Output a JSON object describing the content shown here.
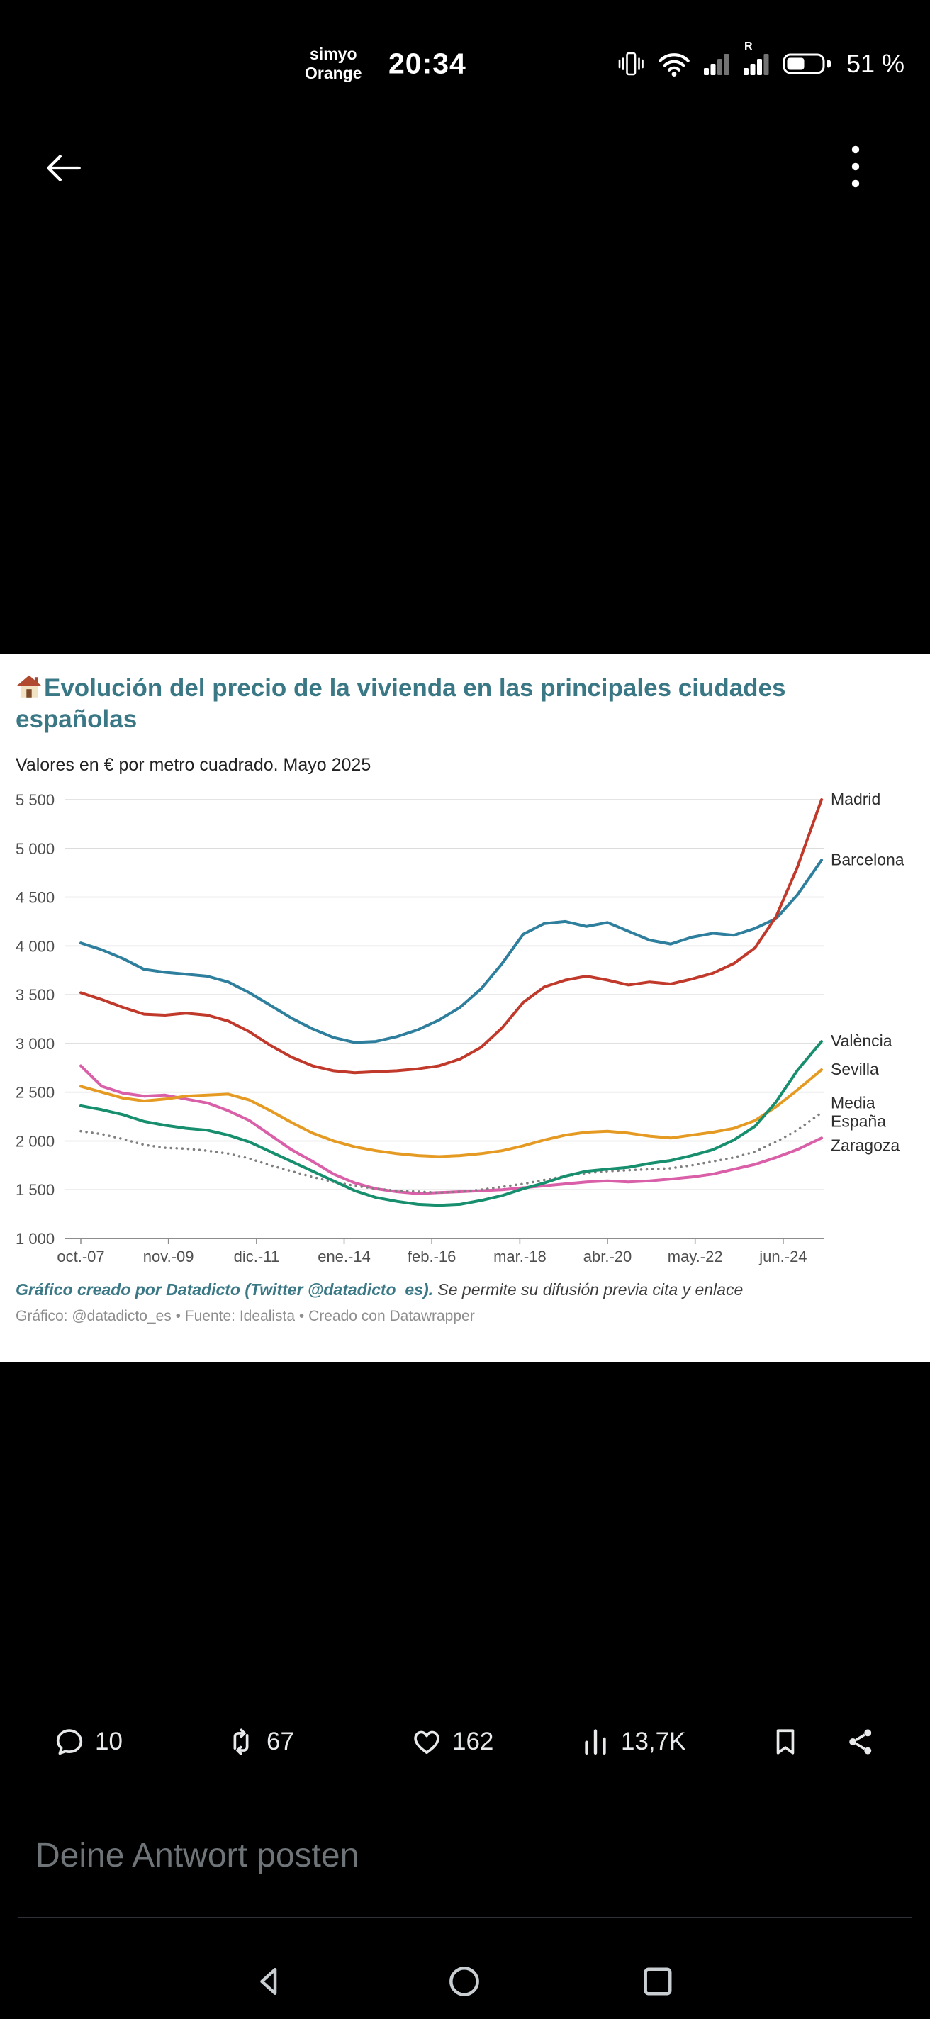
{
  "status_bar": {
    "carrier_line1": "simyo",
    "carrier_line2": "Orange",
    "time": "20:34",
    "battery_percent_label": "51 %",
    "battery_level": 0.51,
    "roaming_badge": "R",
    "icons": [
      "vibrate-icon",
      "wifi-icon",
      "signal-strength-icon",
      "signal-strength-roaming-icon",
      "battery-icon"
    ]
  },
  "viewer_header": {
    "icons": [
      "back-arrow-icon",
      "more-options-kebab-icon"
    ]
  },
  "chart_card": {
    "title_icon": "house-emoji-icon",
    "title": "Evolución del precio de la vivienda en las principales ciudades españolas",
    "subtitle": "Valores en € por metro cuadrado. Mayo 2025",
    "title_color": "#3a7886",
    "credit_bold": "Gráfico creado por Datadicto (Twitter @datadicto_es).",
    "credit_rest": " Se permite su difusión previa cita y enlace",
    "attribution": "Gráfico: @datadicto_es • Fuente: Idealista • Creado con Datawrapper"
  },
  "chart_data": {
    "type": "line",
    "title": "Evolución del precio de la vivienda en las principales ciudades españolas",
    "subtitle": "Valores en € por metro cuadrado. Mayo 2025",
    "unit": "€/m²",
    "grid": true,
    "legend_position": "right-edge-labels",
    "ylim": [
      1000,
      5500
    ],
    "ytick_values": [
      5500,
      5000,
      4500,
      4000,
      3500,
      3000,
      2500,
      2000,
      1500,
      1000
    ],
    "ytick_labels": [
      "5 500",
      "5 000",
      "4 500",
      "4 000",
      "3 500",
      "3 000",
      "2 500",
      "2 000",
      "1 500",
      "1 000"
    ],
    "xticks": [
      "oct.-07",
      "nov.-09",
      "dic.-11",
      "ene.-14",
      "feb.-16",
      "mar.-18",
      "abr.-20",
      "may.-22",
      "jun.-24"
    ],
    "xtick_years": [
      2007.79,
      2009.87,
      2011.96,
      2014.04,
      2016.12,
      2018.21,
      2020.29,
      2022.37,
      2024.46
    ],
    "x_range_years": [
      2007.79,
      2025.37
    ],
    "x_years": [
      2007.79,
      2008.29,
      2008.79,
      2009.29,
      2009.79,
      2010.29,
      2010.79,
      2011.29,
      2011.79,
      2012.29,
      2012.79,
      2013.29,
      2013.79,
      2014.29,
      2014.79,
      2015.29,
      2015.79,
      2016.29,
      2016.79,
      2017.29,
      2017.79,
      2018.29,
      2018.79,
      2019.29,
      2019.79,
      2020.29,
      2020.79,
      2021.29,
      2021.79,
      2022.29,
      2022.79,
      2023.29,
      2023.79,
      2024.29,
      2024.79,
      2025.37
    ],
    "series": [
      {
        "name": "Madrid",
        "label": [
          "Madrid"
        ],
        "color": "#c0392b",
        "dashed": false,
        "values": [
          3520,
          3450,
          3370,
          3300,
          3290,
          3310,
          3290,
          3230,
          3120,
          2980,
          2860,
          2770,
          2720,
          2700,
          2710,
          2720,
          2740,
          2770,
          2840,
          2960,
          3160,
          3420,
          3580,
          3650,
          3690,
          3650,
          3600,
          3630,
          3610,
          3660,
          3720,
          3820,
          3980,
          4300,
          4800,
          5500
        ]
      },
      {
        "name": "Barcelona",
        "label": [
          "Barcelona"
        ],
        "color": "#2e7e9d",
        "dashed": false,
        "values": [
          4030,
          3960,
          3870,
          3760,
          3730,
          3710,
          3690,
          3630,
          3520,
          3390,
          3260,
          3150,
          3060,
          3010,
          3020,
          3070,
          3140,
          3240,
          3370,
          3560,
          3820,
          4120,
          4230,
          4250,
          4200,
          4240,
          4150,
          4060,
          4020,
          4090,
          4130,
          4110,
          4180,
          4280,
          4520,
          4880
        ]
      },
      {
        "name": "València",
        "label": [
          "València"
        ],
        "color": "#178f6e",
        "dashed": false,
        "values": [
          2360,
          2320,
          2270,
          2200,
          2160,
          2130,
          2110,
          2060,
          1990,
          1890,
          1790,
          1690,
          1590,
          1490,
          1420,
          1380,
          1350,
          1340,
          1350,
          1390,
          1440,
          1510,
          1570,
          1640,
          1690,
          1710,
          1730,
          1770,
          1800,
          1850,
          1910,
          2010,
          2150,
          2400,
          2720,
          3020
        ]
      },
      {
        "name": "Sevilla",
        "label": [
          "Sevilla"
        ],
        "color": "#e59b23",
        "dashed": false,
        "values": [
          2560,
          2500,
          2440,
          2410,
          2430,
          2460,
          2470,
          2480,
          2420,
          2310,
          2190,
          2080,
          2000,
          1940,
          1900,
          1870,
          1850,
          1840,
          1850,
          1870,
          1900,
          1950,
          2010,
          2060,
          2090,
          2100,
          2080,
          2050,
          2030,
          2060,
          2090,
          2130,
          2210,
          2350,
          2520,
          2730
        ]
      },
      {
        "name": "Media España",
        "label": [
          "Media",
          "España"
        ],
        "color": "#7f7f7f",
        "dashed": true,
        "values": [
          2100,
          2070,
          2020,
          1960,
          1930,
          1920,
          1900,
          1870,
          1820,
          1750,
          1690,
          1630,
          1580,
          1540,
          1510,
          1490,
          1480,
          1470,
          1480,
          1500,
          1530,
          1560,
          1600,
          1640,
          1670,
          1690,
          1700,
          1710,
          1720,
          1750,
          1790,
          1830,
          1890,
          1990,
          2110,
          2290
        ]
      },
      {
        "name": "Zaragoza",
        "label": [
          "Zaragoza"
        ],
        "color": "#d95fa8",
        "dashed": false,
        "values": [
          2770,
          2560,
          2490,
          2460,
          2470,
          2430,
          2390,
          2310,
          2210,
          2060,
          1910,
          1790,
          1660,
          1570,
          1510,
          1480,
          1460,
          1470,
          1480,
          1490,
          1500,
          1520,
          1540,
          1560,
          1580,
          1590,
          1580,
          1590,
          1610,
          1630,
          1660,
          1710,
          1760,
          1830,
          1910,
          2030
        ]
      }
    ]
  },
  "engagement": {
    "reply_count": "10",
    "repost_count": "67",
    "like_count": "162",
    "view_count": "13,7K",
    "icons": [
      "reply-icon",
      "repost-icon",
      "like-icon",
      "views-icon",
      "bookmark-icon",
      "share-icon"
    ]
  },
  "reply_box": {
    "placeholder": "Deine Antwort posten"
  },
  "nav_bar": {
    "icons": [
      "back-triangle-icon",
      "home-circle-icon",
      "recents-square-icon"
    ]
  }
}
